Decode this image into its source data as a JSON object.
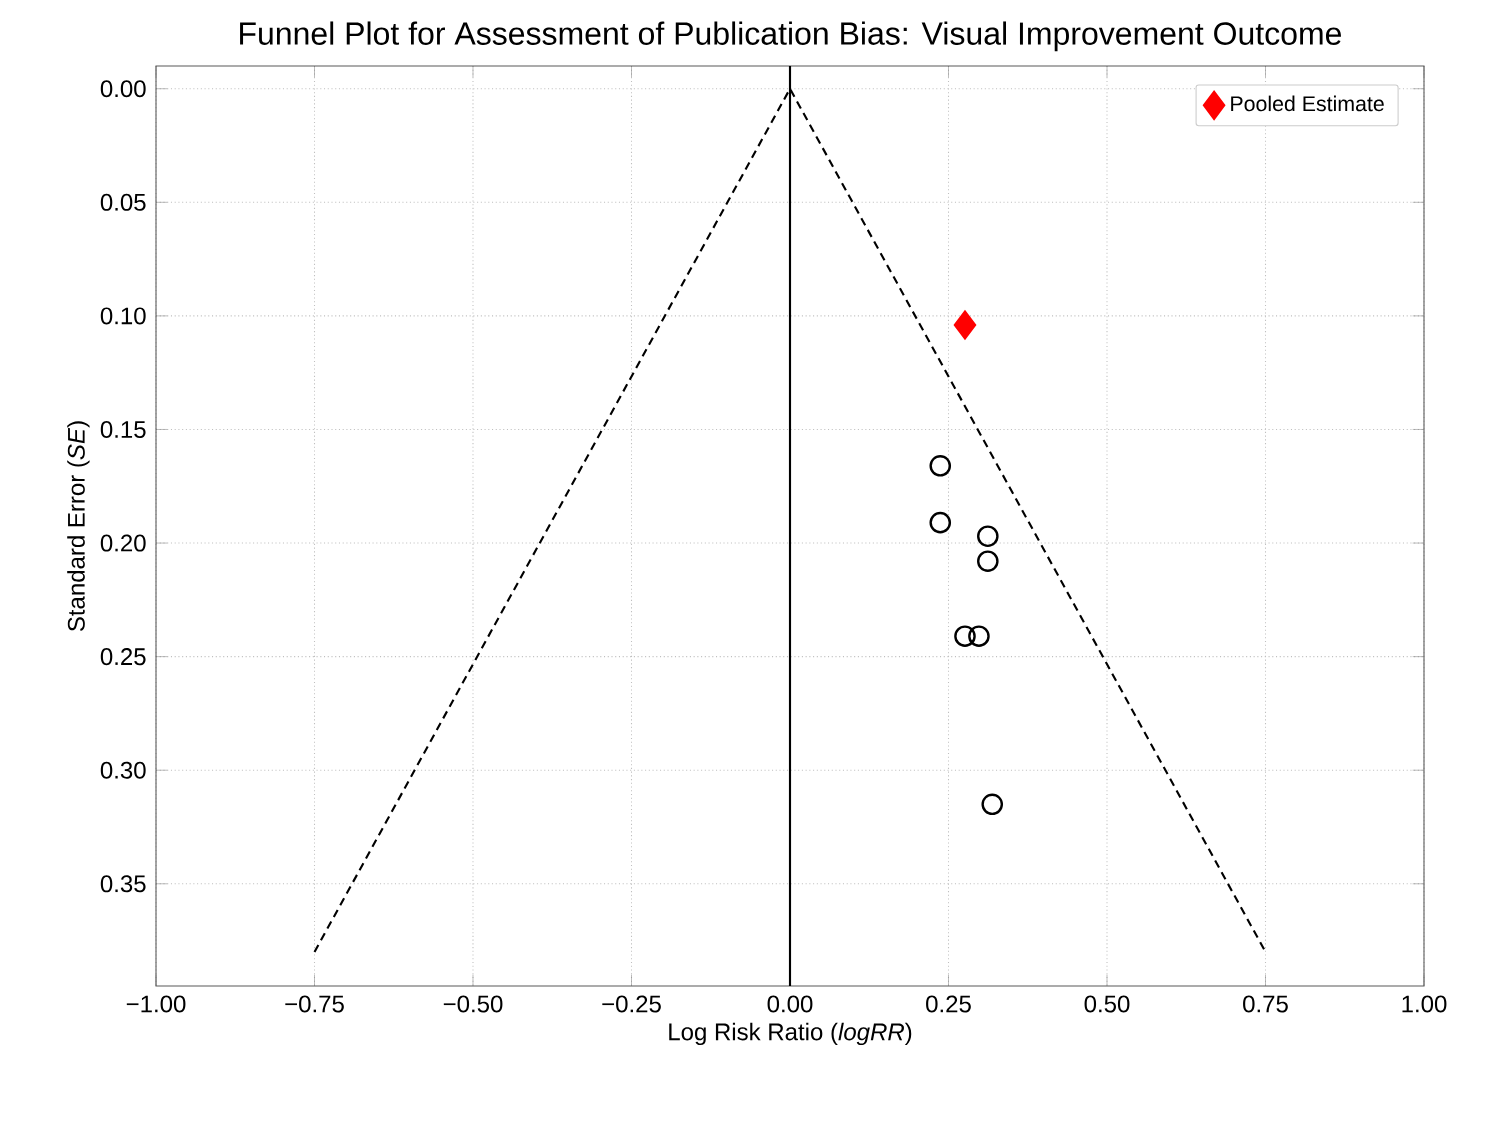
{
  "chart_data": {
    "type": "scatter",
    "title": "Funnel Plot for Assessment of Publication Bias: Visual Improvement Outcome",
    "xlabel": "Log Risk Ratio (*logRR*)",
    "ylabel": "Standard Error (*SE*)",
    "xlim": [
      -1.0,
      1.0
    ],
    "ylim": [
      0.395,
      -0.01
    ],
    "xticks": [
      {
        "value": -1.0,
        "label": "−1.00"
      },
      {
        "value": -0.75,
        "label": "−0.75"
      },
      {
        "value": -0.5,
        "label": "−0.50"
      },
      {
        "value": -0.25,
        "label": "−0.25"
      },
      {
        "value": 0.0,
        "label": "0.00"
      },
      {
        "value": 0.25,
        "label": "0.25"
      },
      {
        "value": 0.5,
        "label": "0.50"
      },
      {
        "value": 0.75,
        "label": "0.75"
      },
      {
        "value": 1.0,
        "label": "1.00"
      }
    ],
    "yticks": [
      {
        "value": 0.0,
        "label": "0.00"
      },
      {
        "value": 0.05,
        "label": "0.05"
      },
      {
        "value": 0.1,
        "label": "0.10"
      },
      {
        "value": 0.15,
        "label": "0.15"
      },
      {
        "value": 0.2,
        "label": "0.20"
      },
      {
        "value": 0.25,
        "label": "0.25"
      },
      {
        "value": 0.3,
        "label": "0.30"
      },
      {
        "value": 0.35,
        "label": "0.35"
      }
    ],
    "grid": true,
    "legend": "top right",
    "ref_lines": [
      {
        "axis": "x",
        "value": 0.0,
        "color": "#000000",
        "line_style": "solid"
      }
    ],
    "series": [
      {
        "type": "line",
        "color": "#000000",
        "line_style": "dashed",
        "marker": "none",
        "x": [
          -0.75,
          0.0,
          0.75
        ],
        "values": [
          0.38,
          0.0,
          0.38
        ]
      },
      {
        "color": "#000000",
        "marker": "circle",
        "x": [
          0.237,
          0.237,
          0.312,
          0.312,
          0.276,
          0.298,
          0.319
        ],
        "values": [
          0.166,
          0.191,
          0.197,
          0.208,
          0.241,
          0.241,
          0.315
        ]
      },
      {
        "name": "Pooled Estimate",
        "color": "#ff0000",
        "marker": "diamond",
        "x": [
          0.276
        ],
        "values": [
          0.104
        ]
      }
    ]
  }
}
